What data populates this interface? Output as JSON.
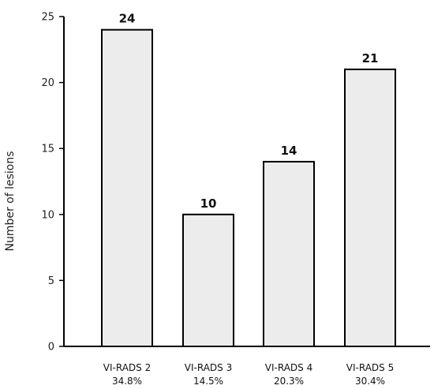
{
  "chart_data": {
    "type": "bar",
    "categories": [
      "VI-RADS 2",
      "VI-RADS 3",
      "VI-RADS 4",
      "VI-RADS 5"
    ],
    "percentages": [
      "34.8%",
      "14.5%",
      "20.3%",
      "30.4%"
    ],
    "values": [
      24,
      10,
      14,
      21
    ],
    "data_labels": [
      "24",
      "10",
      "14",
      "21"
    ],
    "ylabel": "Number of lesions",
    "xlabel": "",
    "ylim": [
      0,
      25
    ],
    "yticks": [
      0,
      5,
      10,
      15,
      20,
      25
    ],
    "grid": false,
    "bar_color": "#ececec",
    "bar_edge_color": "#000000"
  }
}
